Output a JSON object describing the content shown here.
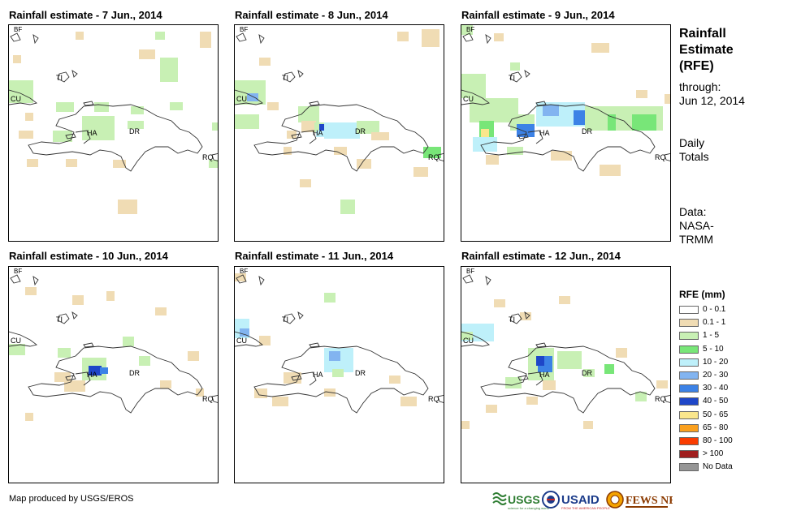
{
  "panels": [
    {
      "title": "Rainfall estimate - 7 Jun., 2014",
      "day": 7
    },
    {
      "title": "Rainfall estimate - 8 Jun., 2014",
      "day": 8
    },
    {
      "title": "Rainfall estimate - 9 Jun., 2014",
      "day": 9
    },
    {
      "title": "Rainfall estimate - 10 Jun., 2014",
      "day": 10
    },
    {
      "title": "Rainfall estimate - 11 Jun., 2014",
      "day": 11
    },
    {
      "title": "Rainfall estimate - 12 Jun., 2014",
      "day": 12
    }
  ],
  "map_labels": {
    "bf": "BF",
    "cu": "CU",
    "ti": "TI",
    "ha": "HA",
    "dr": "DR",
    "rq": "RQ"
  },
  "sidebar": {
    "title_line1": "Rainfall",
    "title_line2": "Estimate",
    "title_line3": "(RFE)",
    "through_label": "through:",
    "through_date": "Jun 12, 2014",
    "totals_line1": "Daily",
    "totals_line2": "Totals",
    "data_line1": "Data:",
    "data_line2": "NASA-",
    "data_line3": "TRMM"
  },
  "legend": {
    "title": "RFE (mm)",
    "items": [
      {
        "label": "0 - 0.1",
        "color": "#ffffff"
      },
      {
        "label": "0.1 - 1",
        "color": "#f0dcb4"
      },
      {
        "label": "1 - 5",
        "color": "#c8f0b4"
      },
      {
        "label": "5 - 10",
        "color": "#78e678"
      },
      {
        "label": "10 - 20",
        "color": "#bef0fa"
      },
      {
        "label": "20 - 30",
        "color": "#82b4f0"
      },
      {
        "label": "30 - 40",
        "color": "#3c82e6"
      },
      {
        "label": "40 - 50",
        "color": "#1e46c8"
      },
      {
        "label": "50 - 65",
        "color": "#fae68c"
      },
      {
        "label": "65 - 80",
        "color": "#faa01e"
      },
      {
        "label": "80 - 100",
        "color": "#fa3c00"
      },
      {
        "label": "> 100",
        "color": "#a01e1e"
      },
      {
        "label": "No Data",
        "color": "#969696"
      }
    ]
  },
  "footer": {
    "credit": "Map produced by USGS/EROS"
  },
  "logos": {
    "usgs": "USGS",
    "usgs_tagline": "science for a changing world",
    "usaid": "USAID",
    "usaid_tagline": "FROM THE AMERICAN PEOPLE",
    "fews": "FEWS NET"
  }
}
